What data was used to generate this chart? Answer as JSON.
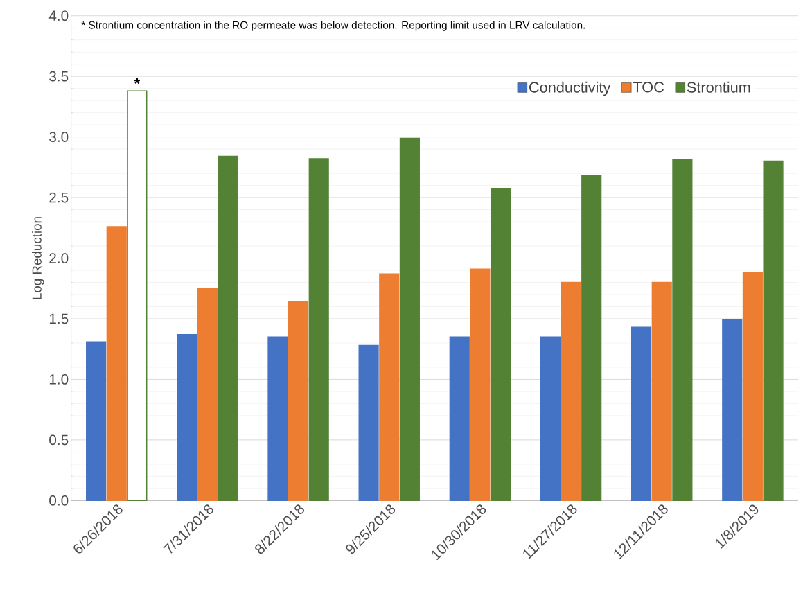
{
  "chart_data": {
    "type": "bar",
    "ylabel": "Log Reduction",
    "categories": [
      "6/26/2018",
      "7/31/2018",
      "8/22/2018",
      "9/25/2018",
      "10/30/2018",
      "11/27/2018",
      "12/11/2018",
      "1/8/2019"
    ],
    "series": [
      {
        "name": "Conductivity",
        "color": "#4472c4",
        "values": [
          1.31,
          1.37,
          1.35,
          1.28,
          1.35,
          1.35,
          1.43,
          1.49
        ]
      },
      {
        "name": "TOC",
        "color": "#ed7d31",
        "values": [
          2.26,
          1.75,
          1.64,
          1.87,
          1.91,
          1.8,
          1.8,
          1.88
        ]
      },
      {
        "name": "Strontium",
        "color": "#548235",
        "colors": [
          "#ffffff",
          "#548235",
          "#548235",
          "#548235",
          "#548235",
          "#548235",
          "#548235",
          "#548235"
        ],
        "values": [
          3.38,
          2.84,
          2.82,
          2.99,
          2.57,
          2.68,
          2.81,
          2.8
        ]
      }
    ],
    "ylim": [
      0,
      4
    ],
    "yticks": [
      {
        "value": 0,
        "label": "0.0"
      },
      {
        "value": 0.5,
        "label": "0.5"
      },
      {
        "value": 1,
        "label": "1.0"
      },
      {
        "value": 1.5,
        "label": "1.5"
      },
      {
        "value": 2,
        "label": "2.0"
      },
      {
        "value": 2.5,
        "label": "2.5"
      },
      {
        "value": 3,
        "label": "3.0"
      },
      {
        "value": 3.5,
        "label": "3.5"
      },
      {
        "value": 4,
        "label": "4.0"
      }
    ],
    "grid": "y",
    "legend": "top right",
    "annotations": [
      "* Strontium concentration in the RO permeate was below detection.  Reporting limit used in LRV calculation.",
      "*"
    ]
  }
}
